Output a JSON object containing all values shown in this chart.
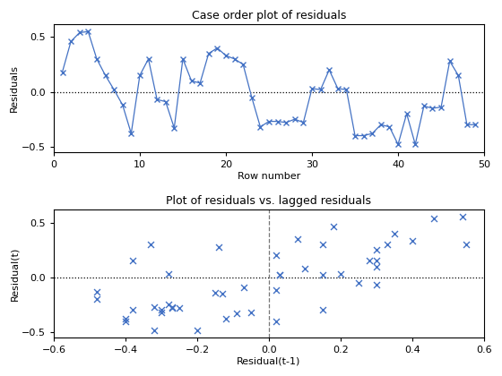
{
  "residuals": [
    0.18,
    0.46,
    0.54,
    0.55,
    0.3,
    0.15,
    0.02,
    -0.12,
    -0.38,
    0.15,
    0.3,
    -0.07,
    -0.09,
    -0.33,
    0.3,
    0.1,
    0.08,
    0.35,
    0.4,
    0.33,
    0.3,
    0.25,
    -0.05,
    -0.32,
    -0.27,
    -0.27,
    -0.28,
    -0.25,
    -0.28,
    0.03,
    0.02,
    0.2,
    0.03,
    0.02,
    -0.4,
    -0.4,
    -0.38,
    -0.3,
    -0.32,
    -0.48,
    -0.2,
    -0.48,
    -0.13,
    -0.15,
    -0.14,
    0.28,
    0.15,
    -0.3,
    -0.3
  ],
  "line_color": "#4472C4",
  "marker": "x",
  "markersize": 5,
  "linewidth": 0.9,
  "title1": "Case order plot of residuals",
  "xlabel1": "Row number",
  "ylabel1": "Residuals",
  "xlim1": [
    0,
    50
  ],
  "ylim1": [
    -0.55,
    0.62
  ],
  "yticks1": [
    -0.5,
    0.0,
    0.5
  ],
  "xticks1": [
    0,
    10,
    20,
    30,
    40,
    50
  ],
  "title2": "Plot of residuals vs. lagged residuals",
  "xlabel2": "Residual(t-1)",
  "ylabel2": "Residual(t)",
  "xlim2": [
    -0.6,
    0.6
  ],
  "ylim2": [
    -0.55,
    0.62
  ],
  "xticks2": [
    -0.6,
    -0.4,
    -0.2,
    0.0,
    0.2,
    0.4,
    0.6
  ],
  "yticks2": [
    -0.5,
    0.0,
    0.5
  ],
  "hline_color": "black",
  "hline_style": "dotted",
  "vline_color": "#777777",
  "vline_style": "dashed",
  "scatter_color": "#4472C4",
  "bg_color": "#ffffff",
  "title_fontsize": 9,
  "label_fontsize": 8,
  "tick_fontsize": 8
}
